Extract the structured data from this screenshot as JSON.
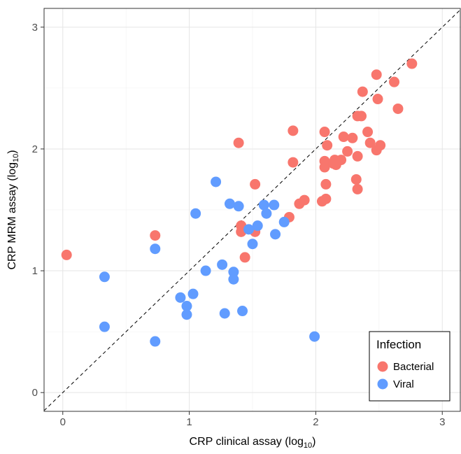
{
  "chart_data": {
    "type": "scatter",
    "x_label": [
      "CRP clinical assay (log",
      "10",
      ")"
    ],
    "y_label": [
      "CRP MRM assay (log",
      "10",
      ")"
    ],
    "xlim": [
      -0.148,
      3.148
    ],
    "ylim": [
      -0.154,
      3.154
    ],
    "xticks": [
      0,
      1,
      2,
      3
    ],
    "yticks": [
      0,
      1,
      2,
      3
    ],
    "minor_xticks": [
      0.5,
      1.5,
      2.5
    ],
    "minor_yticks": [
      0.5,
      1.5,
      2.5
    ],
    "grid": true,
    "reference_line": "y=x",
    "legend_title": "Infection",
    "legend_position": "bottom-right",
    "series": [
      {
        "name": "Bacterial",
        "color": "#F8766D",
        "x": [
          0.03,
          0.73,
          1.39,
          1.41,
          1.41,
          1.44,
          1.52,
          1.52,
          1.79,
          1.82,
          1.82,
          1.87,
          1.91,
          2.05,
          2.08,
          2.07,
          2.07,
          2.08,
          2.07,
          2.09,
          2.14,
          2.2,
          2.15,
          2.16,
          2.22,
          2.25,
          2.29,
          2.32,
          2.33,
          2.33,
          2.33,
          2.36,
          2.37,
          2.41,
          2.43,
          2.48,
          2.49,
          2.48,
          2.51,
          2.62,
          2.65,
          2.76
        ],
        "values": [
          1.13,
          1.29,
          2.05,
          1.37,
          1.32,
          1.11,
          1.71,
          1.32,
          1.44,
          2.15,
          1.89,
          1.55,
          1.58,
          1.57,
          1.59,
          1.9,
          1.85,
          1.71,
          2.14,
          2.03,
          1.88,
          1.91,
          1.91,
          1.87,
          2.1,
          1.98,
          2.09,
          1.75,
          1.67,
          1.94,
          2.27,
          2.27,
          2.47,
          2.14,
          2.05,
          2.61,
          2.41,
          1.99,
          2.03,
          2.55,
          2.33,
          2.7
        ]
      },
      {
        "name": "Viral",
        "color": "#619CFF",
        "x": [
          0.33,
          0.33,
          0.73,
          0.73,
          0.93,
          0.98,
          0.98,
          1.03,
          1.05,
          1.13,
          1.21,
          1.26,
          1.28,
          1.32,
          1.35,
          1.35,
          1.39,
          1.42,
          1.47,
          1.5,
          1.54,
          1.59,
          1.61,
          1.67,
          1.68,
          1.75,
          1.99
        ],
        "values": [
          0.95,
          0.54,
          1.18,
          0.42,
          0.78,
          0.71,
          0.64,
          0.81,
          1.47,
          1.0,
          1.73,
          1.05,
          0.65,
          1.55,
          0.99,
          0.93,
          1.53,
          0.67,
          1.34,
          1.22,
          1.37,
          1.54,
          1.47,
          1.54,
          1.3,
          1.4,
          0.46
        ]
      }
    ]
  }
}
